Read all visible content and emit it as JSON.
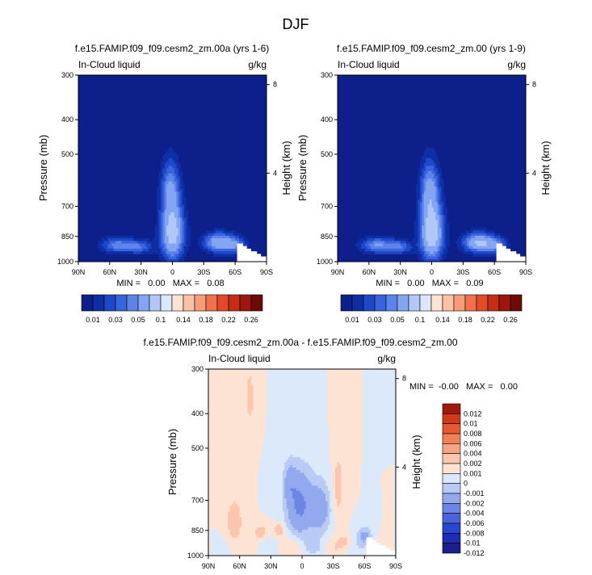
{
  "figure_title": "DJF",
  "colors": {
    "seq": [
      "#0c1f8a",
      "#0e2ea6",
      "#1f48c9",
      "#3a64de",
      "#5c84ea",
      "#84a6f2",
      "#b1c8f7",
      "#dce7fb",
      "#fde3d3",
      "#fbc1a6",
      "#f79c7a",
      "#f2704c",
      "#e34a2a",
      "#c62d16",
      "#9e170c",
      "#6e0a06"
    ],
    "diff": [
      "#1a1f8c",
      "#1e2eb3",
      "#2a45cf",
      "#4a64dc",
      "#6d86e5",
      "#93a9ee",
      "#b9cbf5",
      "#dbe7fb",
      "#fde3d3",
      "#fbc6ad",
      "#f5a584",
      "#ef8057",
      "#e65a32",
      "#cf3a1a",
      "#9e1a0f"
    ],
    "background_fill": "#dce9fb"
  },
  "chart_data": [
    {
      "type": "heatmap",
      "name": "panel-left",
      "title": "f.e15.FAMIP.f09_f09.cesm2_zm.00a (yrs 1-6)",
      "left_label": "In-Cloud liquid",
      "right_label": "g/kg",
      "ylabel": "Pressure (mb)",
      "ylabel_right": "Height (km)",
      "x_ticks": [
        "90N",
        "60N",
        "30N",
        "0",
        "30S",
        "60S",
        "90S"
      ],
      "y_ticks": [
        "300",
        "400",
        "500",
        "700",
        "850",
        "1000"
      ],
      "y_tick_values": [
        300,
        400,
        500,
        700,
        850,
        1000
      ],
      "right_ticks": [
        "8",
        "4"
      ],
      "right_tick_values": [
        8,
        4
      ],
      "ylim": [
        300,
        1000
      ],
      "xlim": [
        90,
        -90
      ],
      "stats_text": "MIN =   0.00   MAX =   0.08",
      "contour_levels": [
        0.01,
        0.02,
        0.03,
        0.04,
        0.05,
        0.07,
        0.1,
        0.12,
        0.14,
        0.16,
        0.18,
        0.2,
        0.22,
        0.24,
        0.26
      ],
      "colorbar_labels": [
        "0.01",
        "0.03",
        "0.05",
        "0.1",
        "0.14",
        "0.18",
        "0.22",
        "0.26"
      ]
    },
    {
      "type": "heatmap",
      "name": "panel-right",
      "title": "f.e15.FAMIP.f09_f09.cesm2_zm.00 (yrs 1-9)",
      "left_label": "In-Cloud liquid",
      "right_label": "g/kg",
      "ylabel": "Pressure (mb)",
      "ylabel_right": "Height (km)",
      "x_ticks": [
        "90N",
        "60N",
        "30N",
        "0",
        "30S",
        "60S",
        "90S"
      ],
      "y_ticks": [
        "300",
        "400",
        "500",
        "700",
        "850",
        "1000"
      ],
      "y_tick_values": [
        300,
        400,
        500,
        700,
        850,
        1000
      ],
      "right_ticks": [
        "8",
        "4"
      ],
      "right_tick_values": [
        8,
        4
      ],
      "ylim": [
        300,
        1000
      ],
      "xlim": [
        90,
        -90
      ],
      "stats_text": "MIN =   0.00   MAX =   0.09",
      "contour_levels": [
        0.01,
        0.02,
        0.03,
        0.04,
        0.05,
        0.07,
        0.1,
        0.12,
        0.14,
        0.16,
        0.18,
        0.2,
        0.22,
        0.24,
        0.26
      ],
      "colorbar_labels": [
        "0.01",
        "0.03",
        "0.05",
        "0.1",
        "0.14",
        "0.18",
        "0.22",
        "0.26"
      ]
    },
    {
      "type": "heatmap",
      "name": "panel-diff",
      "title": "f.e15.FAMIP.f09_f09.cesm2_zm.00a - f.e15.FAMIP.f09_f09.cesm2_zm.00",
      "left_label": "In-Cloud liquid",
      "right_label": "g/kg",
      "ylabel": "Pressure (mb)",
      "ylabel_right": "Height (km)",
      "x_ticks": [
        "90N",
        "60N",
        "30N",
        "0",
        "30S",
        "60S",
        "90S"
      ],
      "y_ticks": [
        "300",
        "400",
        "500",
        "700",
        "850",
        "1000"
      ],
      "y_tick_values": [
        300,
        400,
        500,
        700,
        850,
        1000
      ],
      "right_ticks": [
        "8",
        "4"
      ],
      "right_tick_values": [
        8,
        4
      ],
      "ylim": [
        300,
        1000
      ],
      "xlim": [
        90,
        -90
      ],
      "stats_text": "MIN =  -0.00   MAX =   0.00",
      "colorbar_labels": [
        "0.012",
        "0.01",
        "0.008",
        "0.006",
        "0.004",
        "0.002",
        "0.001",
        "0",
        "-0.001",
        "-0.002",
        "-0.004",
        "-0.006",
        "-0.008",
        "-0.01",
        "-0.012"
      ]
    }
  ]
}
